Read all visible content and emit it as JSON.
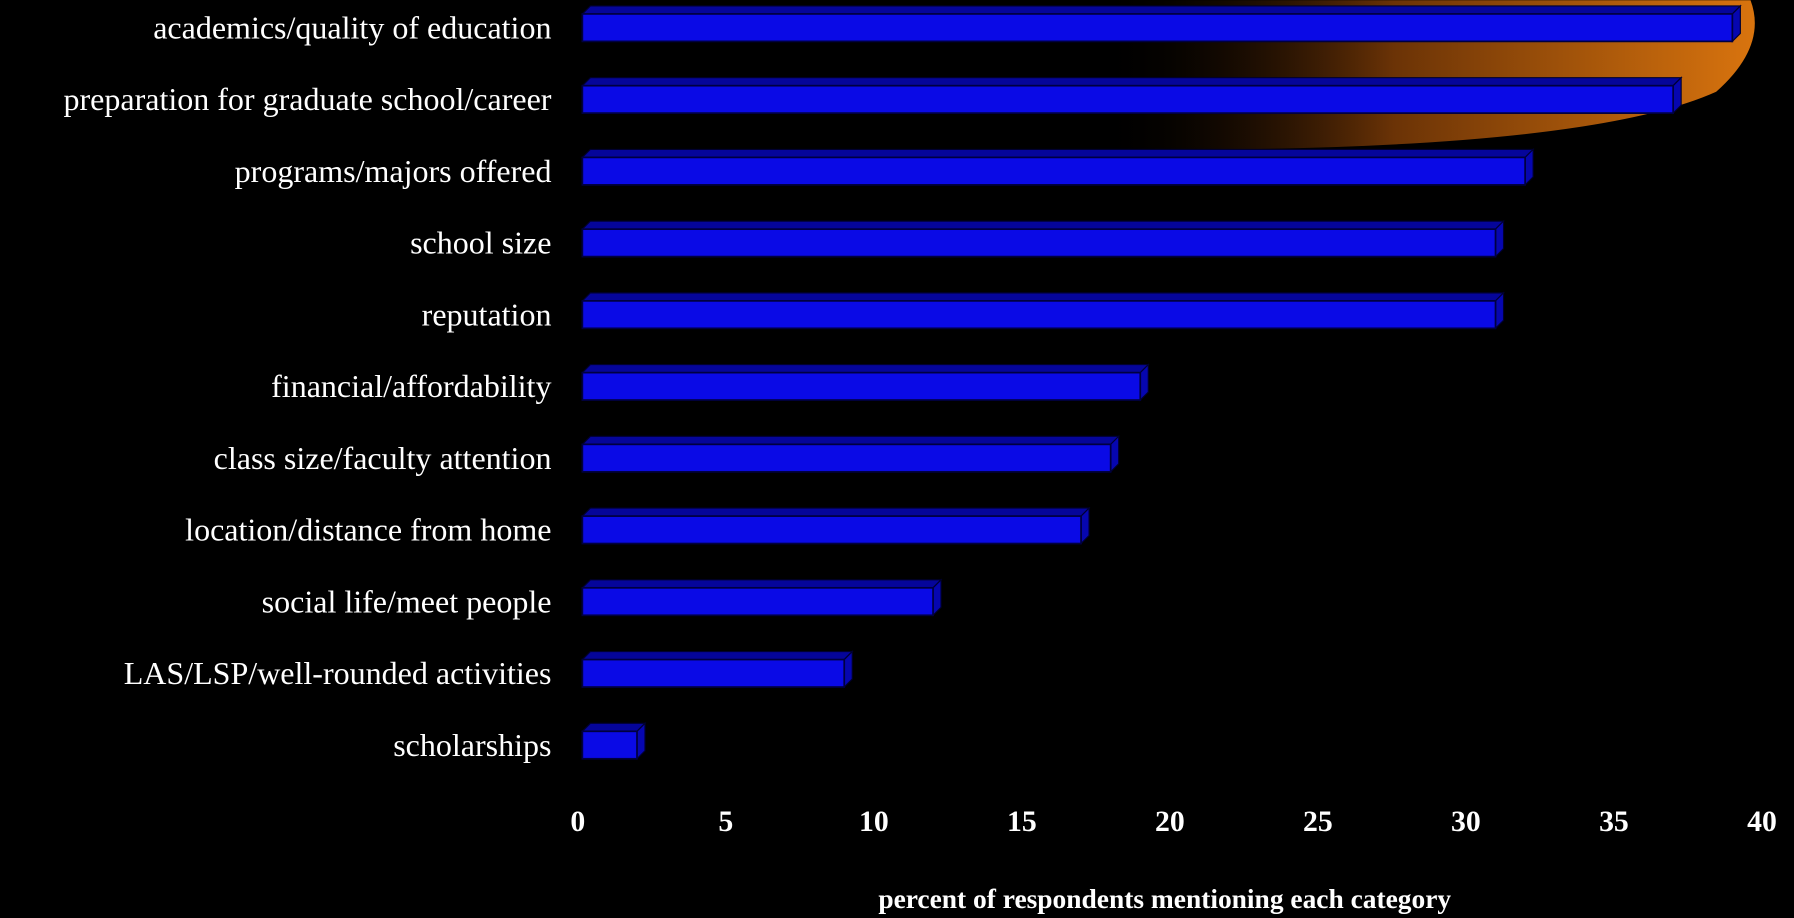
{
  "chart_data": {
    "type": "hbar",
    "x_label": "percent of respondents mentioning each category",
    "categories": [
      "academics/quality of education",
      "preparation for graduate school/career",
      "programs/majors offered",
      "school size",
      "reputation",
      "financial/affordability",
      "class size/faculty attention",
      "location/distance from home",
      "social life/meet people",
      "LAS/LSP/well-rounded activities",
      "scholarships"
    ],
    "values": [
      39,
      37,
      32,
      31,
      31,
      19,
      18,
      17,
      12,
      9,
      2
    ],
    "color": "#0a0ae6",
    "xlim": [
      0,
      40
    ],
    "xticks": [
      0,
      5,
      10,
      15,
      20,
      25,
      30,
      35,
      40
    ],
    "grid": false
  }
}
